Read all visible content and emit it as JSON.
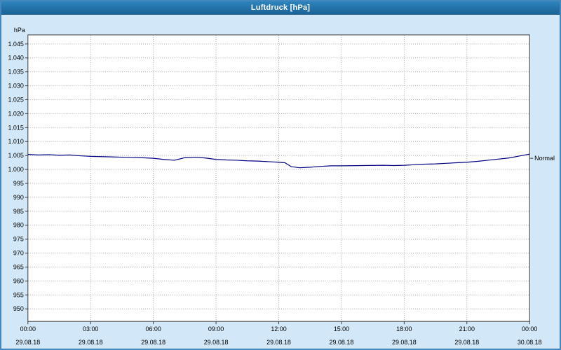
{
  "window": {
    "title": "Luftdruck [hPa]"
  },
  "colors": {
    "background": "#d2e7f7",
    "titlebar_top": "#2e84bd",
    "titlebar_bottom": "#1a6397",
    "window_border": "#4288bd",
    "plot_background": "#ffffff",
    "plot_border": "#3a3a3a",
    "grid": "#9fa8ae",
    "line": "#000080",
    "text": "#000000"
  },
  "chart_data": {
    "type": "line",
    "title": "Luftdruck [hPa]",
    "y_unit": "hPa",
    "ylim": [
      945.5,
      1048.25
    ],
    "xlim_hours": [
      0,
      24
    ],
    "grid": "dotted",
    "legend": "none",
    "line_color": "#000080",
    "y_ticks": [
      {
        "value": 1045,
        "label": "1.045"
      },
      {
        "value": 1040,
        "label": "1.040"
      },
      {
        "value": 1035,
        "label": "1.035"
      },
      {
        "value": 1030,
        "label": "1.030"
      },
      {
        "value": 1025,
        "label": "1.025"
      },
      {
        "value": 1020,
        "label": "1.020"
      },
      {
        "value": 1015,
        "label": "1.015"
      },
      {
        "value": 1010,
        "label": "1.010"
      },
      {
        "value": 1005,
        "label": "1.005"
      },
      {
        "value": 1000,
        "label": "1.000"
      },
      {
        "value": 995,
        "label": "995"
      },
      {
        "value": 990,
        "label": "990"
      },
      {
        "value": 985,
        "label": "985"
      },
      {
        "value": 980,
        "label": "980"
      },
      {
        "value": 975,
        "label": "975"
      },
      {
        "value": 970,
        "label": "970"
      },
      {
        "value": 965,
        "label": "965"
      },
      {
        "value": 960,
        "label": "960"
      },
      {
        "value": 955,
        "label": "955"
      },
      {
        "value": 950,
        "label": "950"
      }
    ],
    "x_ticks": [
      {
        "hour": 0,
        "time": "00:00",
        "date": "29.08.18"
      },
      {
        "hour": 3,
        "time": "03:00",
        "date": "29.08.18"
      },
      {
        "hour": 6,
        "time": "06:00",
        "date": "29.08.18"
      },
      {
        "hour": 9,
        "time": "09:00",
        "date": "29.08.18"
      },
      {
        "hour": 12,
        "time": "12:00",
        "date": "29.08.18"
      },
      {
        "hour": 15,
        "time": "15:00",
        "date": "29.08.18"
      },
      {
        "hour": 18,
        "time": "18:00",
        "date": "29.08.18"
      },
      {
        "hour": 21,
        "time": "21:00",
        "date": "29.08.18"
      },
      {
        "hour": 24,
        "time": "00:00",
        "date": "30.08.18"
      }
    ],
    "normal_marker": {
      "value": 1004,
      "label": "Normal"
    },
    "series": [
      {
        "name": "Luftdruck",
        "points": [
          [
            0,
            1005.4
          ],
          [
            0.5,
            1005.2
          ],
          [
            1,
            1005.3
          ],
          [
            1.5,
            1005.1
          ],
          [
            2,
            1005.2
          ],
          [
            2.5,
            1004.9
          ],
          [
            3,
            1004.7
          ],
          [
            3.5,
            1004.6
          ],
          [
            4,
            1004.5
          ],
          [
            4.5,
            1004.4
          ],
          [
            5,
            1004.3
          ],
          [
            5.5,
            1004.2
          ],
          [
            6,
            1004.0
          ],
          [
            6.5,
            1003.6
          ],
          [
            7,
            1003.3
          ],
          [
            7.5,
            1004.2
          ],
          [
            8,
            1004.4
          ],
          [
            8.5,
            1004.1
          ],
          [
            9,
            1003.6
          ],
          [
            9.5,
            1003.4
          ],
          [
            10,
            1003.3
          ],
          [
            10.5,
            1003.1
          ],
          [
            11,
            1003.0
          ],
          [
            11.5,
            1002.8
          ],
          [
            12,
            1002.6
          ],
          [
            12.3,
            1002.4
          ],
          [
            12.6,
            1001.0
          ],
          [
            13,
            1000.6
          ],
          [
            13.5,
            1000.8
          ],
          [
            14,
            1001.1
          ],
          [
            14.5,
            1001.3
          ],
          [
            15,
            1001.3
          ],
          [
            16,
            1001.4
          ],
          [
            17,
            1001.5
          ],
          [
            17.5,
            1001.4
          ],
          [
            18,
            1001.5
          ],
          [
            18.5,
            1001.7
          ],
          [
            19,
            1001.9
          ],
          [
            19.5,
            1002.0
          ],
          [
            20,
            1002.2
          ],
          [
            20.5,
            1002.4
          ],
          [
            21,
            1002.6
          ],
          [
            21.5,
            1002.9
          ],
          [
            22,
            1003.3
          ],
          [
            22.5,
            1003.7
          ],
          [
            23,
            1004.1
          ],
          [
            23.5,
            1004.8
          ],
          [
            24,
            1005.5
          ]
        ]
      }
    ]
  }
}
